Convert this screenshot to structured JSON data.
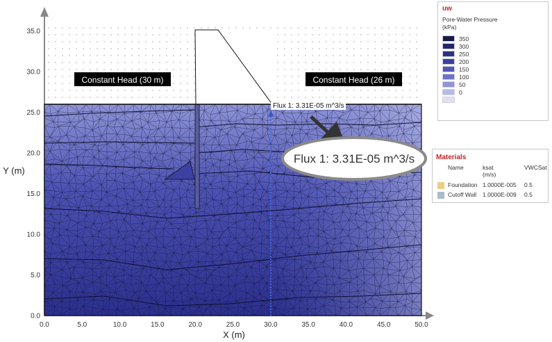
{
  "plot": {
    "x_axis_label": "X (m)",
    "y_axis_label": "Y (m)",
    "x_ticks": [
      "0.0",
      "5.0",
      "10.0",
      "15.0",
      "20.0",
      "25.0",
      "30.0",
      "35.0",
      "40.0",
      "45.0",
      "50.0"
    ],
    "y_ticks": [
      "0.0",
      "5.0",
      "10.0",
      "15.0",
      "20.0",
      "25.0",
      "30.0",
      "35.0"
    ],
    "x_range": [
      0,
      50
    ],
    "y_range": [
      0,
      37
    ],
    "upstream_label": "Constant Head (30 m)",
    "downstream_label": "Constant Head (26 m)",
    "flux_label_small": "Flux 1: 3.31E-05 m^3/s",
    "flux_label_callout": "Flux 1: 3.31E-05 m^3/s",
    "flux_section_x": 30.0,
    "colors": {
      "deep": "#2b2f8c",
      "shallow": "#a7aee0",
      "mesh": "#1b1b3a",
      "arrow": "#333333",
      "callout_ring": "#8a8a8a"
    }
  },
  "legend": {
    "title": "uw",
    "subtitle": "Pore-Water Pressure",
    "unit": "(kPa)",
    "scale": [
      {
        "label": "350",
        "color": "#1a1a4a"
      },
      {
        "label": "300",
        "color": "#22266a"
      },
      {
        "label": "250",
        "color": "#2d3284"
      },
      {
        "label": "200",
        "color": "#3b41a0"
      },
      {
        "label": "150",
        "color": "#5157b4"
      },
      {
        "label": "100",
        "color": "#6d73c4"
      },
      {
        "label": "50",
        "color": "#9096d4"
      },
      {
        "label": "0",
        "color": "#b7bbe4"
      },
      {
        "label": "",
        "color": "#dfe1f3"
      }
    ]
  },
  "materials": {
    "title": "Materials",
    "headers": {
      "name": "Name",
      "ksat": "ksat",
      "ksat_unit": "(m/s)",
      "vwc": "VWCSat"
    },
    "rows": [
      {
        "name": "Foundation",
        "ksat": "1.0000E-005",
        "vwc": "0.5",
        "color": "#e6d08a"
      },
      {
        "name": "Cutoff Wall",
        "ksat": "1.0000E-009",
        "vwc": "0.5",
        "color": "#a9bcc9"
      }
    ]
  }
}
